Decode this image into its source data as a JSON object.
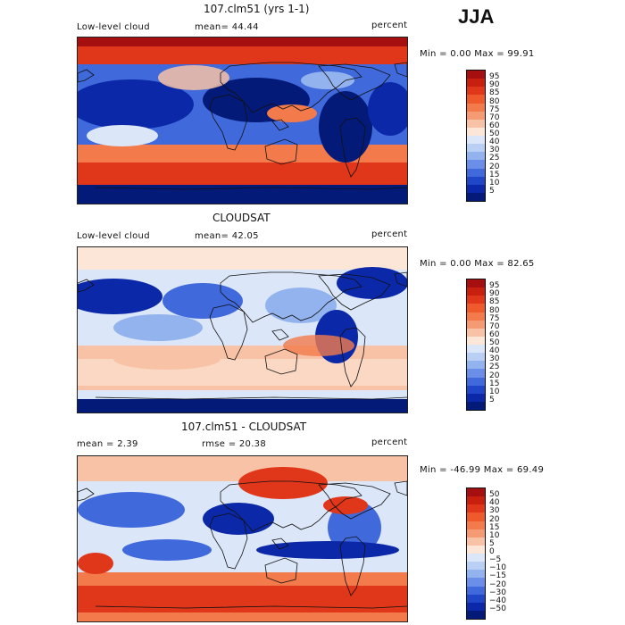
{
  "season": "JJA",
  "panels": [
    {
      "title": "107.clm51 (yrs 1-1)",
      "left_label": "Low-level cloud",
      "mid_label": "mean=  44.44",
      "right_label": "percent",
      "minmax": "Min =    0.00 Max =   99.91",
      "field": "model"
    },
    {
      "title": "CLOUDSAT",
      "left_label": "Low-level cloud",
      "mid_label": "mean=  42.05",
      "right_label": "percent",
      "minmax": "Min =    0.00 Max =   82.65",
      "field": "obs"
    },
    {
      "title": "107.clm51 - CLOUDSAT",
      "left_label": "mean =    2.39",
      "mid_label": "rmse =   20.38",
      "right_label": "percent",
      "minmax": "Min = -46.99 Max =   69.49",
      "field": "diff"
    }
  ],
  "colorbars": {
    "cloud": {
      "levels": [
        "95",
        "90",
        "85",
        "80",
        "75",
        "70",
        "60",
        "50",
        "40",
        "30",
        "25",
        "20",
        "15",
        "10",
        "5"
      ],
      "colors": [
        "#a50f0f",
        "#c8200e",
        "#e0361a",
        "#ef5a2c",
        "#f27a4b",
        "#f59b73",
        "#f8c2a6",
        "#fbe6d8",
        "#dbe7f8",
        "#b9cff3",
        "#93b3ee",
        "#6b8fe8",
        "#4069dc",
        "#1f46c7",
        "#0b28a8",
        "#041a78"
      ]
    },
    "diff": {
      "levels": [
        "50",
        "40",
        "30",
        "20",
        "15",
        "10",
        "5",
        "0",
        "−5",
        "−10",
        "−15",
        "−20",
        "−30",
        "−40",
        "−50"
      ],
      "colors": [
        "#a50f0f",
        "#c8200e",
        "#e0361a",
        "#ef5a2c",
        "#f27a4b",
        "#f59b73",
        "#f8c2a6",
        "#fbe6d8",
        "#dbe7f8",
        "#b9cff3",
        "#93b3ee",
        "#6b8fe8",
        "#4069dc",
        "#1f46c7",
        "#0b28a8",
        "#041a78"
      ]
    }
  }
}
